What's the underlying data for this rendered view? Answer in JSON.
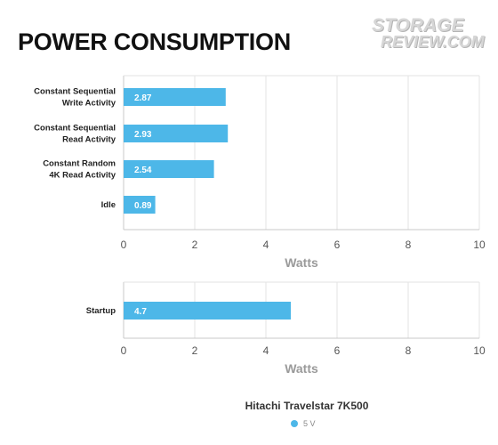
{
  "title": "POWER CONSUMPTION",
  "logo": {
    "line1": "STORAGE",
    "line2": "REVIEW.COM"
  },
  "colors": {
    "bar": "#4db7e8",
    "grid": "#e3e3e3",
    "axis": "#c8c8c8",
    "plot_bg": "#ffffff"
  },
  "legend": {
    "title": "Hitachi Travelstar 7K500",
    "items": [
      {
        "label": "5 V",
        "color": "#4db7e8"
      }
    ]
  },
  "chart_data": [
    {
      "type": "bar",
      "orientation": "horizontal",
      "categories": [
        [
          "Constant Sequential",
          "Write Activity"
        ],
        [
          "Constant Sequential",
          "Read Activity"
        ],
        [
          "Constant Random",
          "4K Read Activity"
        ],
        [
          "Idle"
        ]
      ],
      "series": [
        {
          "name": "5 V",
          "values": [
            2.87,
            2.93,
            2.54,
            0.89
          ]
        }
      ],
      "value_labels": [
        "2.87",
        "2.93",
        "2.54",
        "0.89"
      ],
      "xlabel": "Watts",
      "xlim": [
        0,
        10
      ],
      "xticks": [
        0,
        2,
        4,
        6,
        8,
        10
      ],
      "grid": true
    },
    {
      "type": "bar",
      "orientation": "horizontal",
      "categories": [
        [
          "Startup"
        ]
      ],
      "series": [
        {
          "name": "5 V",
          "values": [
            4.7
          ]
        }
      ],
      "value_labels": [
        "4.7"
      ],
      "xlabel": "Watts",
      "xlim": [
        0,
        10
      ],
      "xticks": [
        0,
        2,
        4,
        6,
        8,
        10
      ],
      "grid": true
    }
  ]
}
